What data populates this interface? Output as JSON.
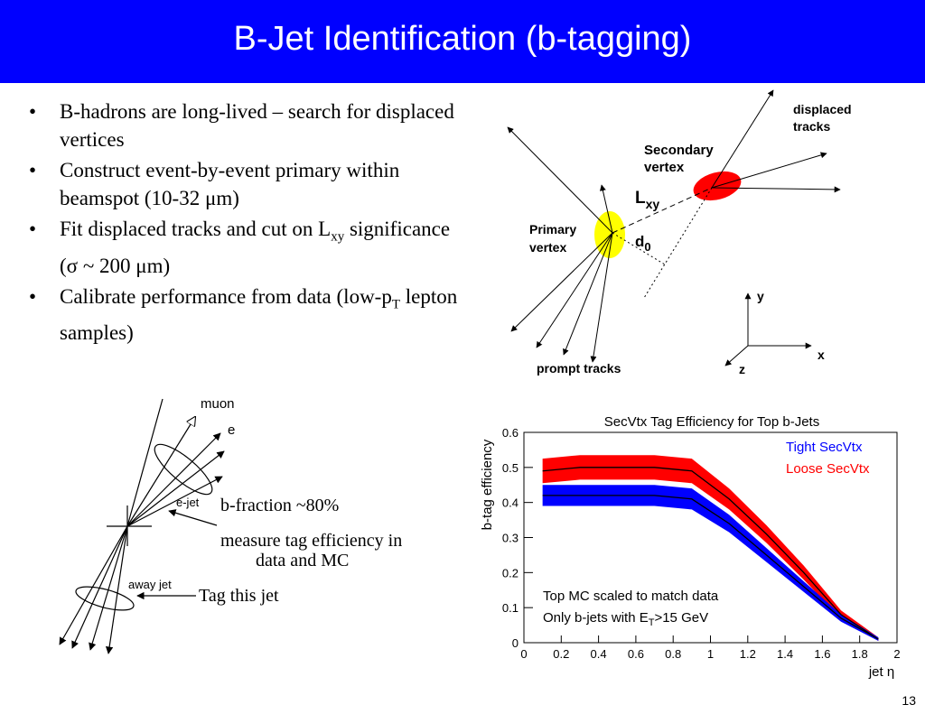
{
  "title": "B-Jet Identification (b-tagging)",
  "bullets": [
    {
      "parts": [
        "B-hadrons are long-lived – search for displaced vertices"
      ]
    },
    {
      "parts": [
        "Construct event-by-event primary within beamspot (10-32 ",
        "μ",
        "m)"
      ]
    },
    {
      "parts": [
        "Fit displaced tracks and cut on L",
        "xy",
        " significance (",
        "σ",
        " ~ 200 ",
        "μ",
        "m)"
      ]
    },
    {
      "parts": [
        "Calibrate performance from data (low-p",
        "T",
        " lepton samples)"
      ]
    }
  ],
  "vertex_diagram": {
    "displaced_tracks": [
      "displaced",
      "tracks"
    ],
    "secondary_vertex": [
      "Secondary",
      "vertex"
    ],
    "primary_vertex": [
      "Primary",
      "vertex"
    ],
    "lxy": [
      "L",
      "xy"
    ],
    "d0": [
      "d",
      "0"
    ],
    "prompt_tracks": "prompt tracks",
    "axes": {
      "y": "y",
      "x": "x",
      "z": "z"
    },
    "colors": {
      "primary": "#ffff00",
      "secondary": "#ff0000"
    }
  },
  "jet_diagram": {
    "muon": "muon",
    "e": "e",
    "e_jet": "e-jet",
    "away_jet": "away jet",
    "b_fraction": "b-fraction ~80%",
    "measure": [
      "measure tag efficiency in",
      "data and MC"
    ],
    "tag_this_jet": "Tag this jet"
  },
  "chart_data": {
    "type": "line",
    "title": "SecVtx Tag Efficiency for Top b-Jets",
    "xlabel": "jet η",
    "ylabel": "b-tag efficiency",
    "xlim": [
      0,
      2
    ],
    "ylim": [
      0,
      0.6
    ],
    "xticks": [
      "0",
      "0.2",
      "0.4",
      "0.6",
      "0.8",
      "1",
      "1.2",
      "1.4",
      "1.6",
      "1.8",
      "2"
    ],
    "yticks": [
      "0",
      "0.1",
      "0.2",
      "0.3",
      "0.4",
      "0.5",
      "0.6"
    ],
    "legend_position": "top-right",
    "annotations": [
      "Top MC scaled to match data",
      "Only b-jets with E",
      "T",
      ">15 GeV"
    ],
    "series": [
      {
        "name": "Tight SecVtx",
        "color": "#0000ff",
        "x": [
          0.1,
          0.3,
          0.5,
          0.7,
          0.9,
          1.1,
          1.3,
          1.5,
          1.7,
          1.9
        ],
        "values": [
          0.42,
          0.42,
          0.42,
          0.42,
          0.41,
          0.34,
          0.25,
          0.16,
          0.07,
          0.01
        ],
        "band": [
          0.03,
          0.03,
          0.03,
          0.03,
          0.03,
          0.025,
          0.02,
          0.015,
          0.01,
          0.005
        ]
      },
      {
        "name": "Loose SecVtx",
        "color": "#ff0000",
        "x": [
          0.1,
          0.3,
          0.5,
          0.7,
          0.9,
          1.1,
          1.3,
          1.5,
          1.7,
          1.9
        ],
        "values": [
          0.49,
          0.5,
          0.5,
          0.5,
          0.49,
          0.41,
          0.31,
          0.2,
          0.08,
          0.01
        ],
        "band": [
          0.035,
          0.035,
          0.035,
          0.035,
          0.035,
          0.03,
          0.025,
          0.02,
          0.012,
          0.005
        ]
      }
    ]
  },
  "page_number": "13"
}
